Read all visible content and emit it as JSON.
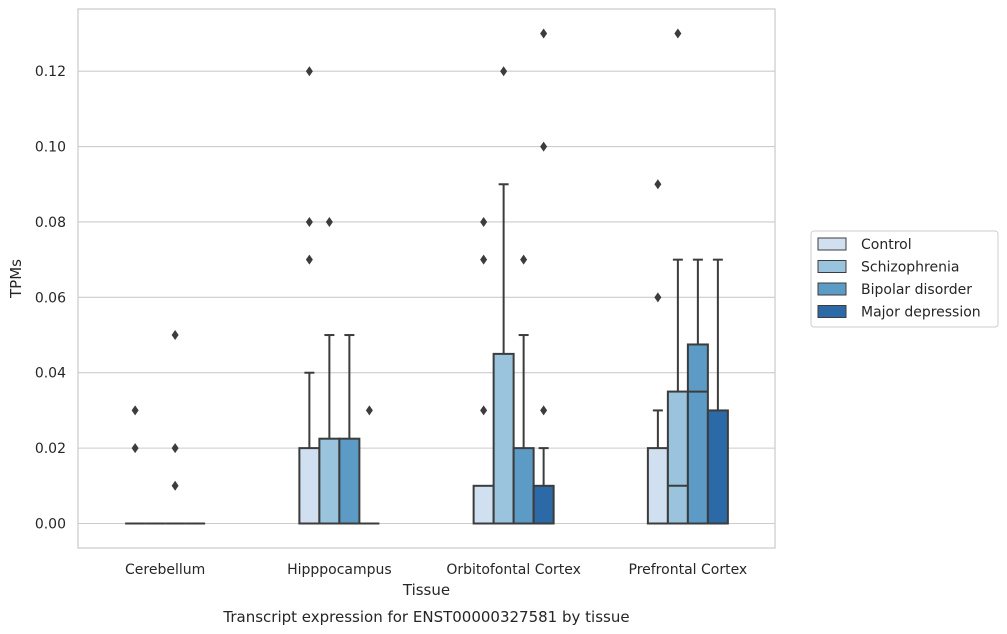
{
  "chart_data": {
    "type": "box",
    "caption": "Transcript expression for ENST00000327581 by tissue",
    "xlabel": "Tissue",
    "ylabel": "TPMs",
    "ylim": [
      -0.0065,
      0.1365
    ],
    "yticks": [
      "0.00",
      "0.02",
      "0.04",
      "0.06",
      "0.08",
      "0.10",
      "0.12"
    ],
    "grid": true,
    "legend_position": "right",
    "categories": [
      "Cerebellum",
      "Hipppocampus",
      "Orbitofontal Cortex",
      "Prefrontal Cortex"
    ],
    "series": [
      {
        "name": "Control",
        "color": "#d0e0f0",
        "boxes": [
          {
            "q1": 0.0,
            "median": 0.0,
            "q3": 0.0,
            "whisker_low": 0.0,
            "whisker_high": 0.0,
            "outliers": [
              0.03,
              0.02
            ]
          },
          {
            "q1": 0.0,
            "median": 0.0,
            "q3": 0.02,
            "whisker_low": 0.0,
            "whisker_high": 0.04,
            "outliers": [
              0.12,
              0.08,
              0.07
            ]
          },
          {
            "q1": 0.0,
            "median": 0.0,
            "q3": 0.01,
            "whisker_low": 0.0,
            "whisker_high": 0.01,
            "outliers": [
              0.08,
              0.07,
              0.03
            ]
          },
          {
            "q1": 0.0,
            "median": 0.0,
            "q3": 0.02,
            "whisker_low": 0.0,
            "whisker_high": 0.03,
            "outliers": [
              0.09,
              0.06
            ]
          }
        ]
      },
      {
        "name": "Schizophrenia",
        "color": "#9ac4dd",
        "boxes": [
          {
            "q1": 0.0,
            "median": 0.0,
            "q3": 0.0,
            "whisker_low": 0.0,
            "whisker_high": 0.0,
            "outliers": []
          },
          {
            "q1": 0.0,
            "median": 0.0,
            "q3": 0.0225,
            "whisker_low": 0.0,
            "whisker_high": 0.05,
            "outliers": [
              0.08
            ]
          },
          {
            "q1": 0.0,
            "median": 0.0,
            "q3": 0.045,
            "whisker_low": 0.0,
            "whisker_high": 0.09,
            "outliers": [
              0.12
            ]
          },
          {
            "q1": 0.0,
            "median": 0.01,
            "q3": 0.035,
            "whisker_low": 0.0,
            "whisker_high": 0.07,
            "outliers": [
              0.13
            ]
          }
        ]
      },
      {
        "name": "Bipolar disorder",
        "color": "#5b9bc6",
        "boxes": [
          {
            "q1": 0.0,
            "median": 0.0,
            "q3": 0.0,
            "whisker_low": 0.0,
            "whisker_high": 0.0,
            "outliers": [
              0.05,
              0.02,
              0.01
            ]
          },
          {
            "q1": 0.0,
            "median": 0.0,
            "q3": 0.0225,
            "whisker_low": 0.0,
            "whisker_high": 0.05,
            "outliers": []
          },
          {
            "q1": 0.0,
            "median": 0.0,
            "q3": 0.02,
            "whisker_low": 0.0,
            "whisker_high": 0.05,
            "outliers": [
              0.07
            ]
          },
          {
            "q1": 0.0,
            "median": 0.035,
            "q3": 0.0475,
            "whisker_low": 0.0,
            "whisker_high": 0.07,
            "outliers": []
          }
        ]
      },
      {
        "name": "Major depression",
        "color": "#2b6aa6",
        "boxes": [
          {
            "q1": 0.0,
            "median": 0.0,
            "q3": 0.0,
            "whisker_low": 0.0,
            "whisker_high": 0.0,
            "outliers": []
          },
          {
            "q1": 0.0,
            "median": 0.0,
            "q3": 0.0,
            "whisker_low": 0.0,
            "whisker_high": 0.0,
            "outliers": [
              0.03
            ]
          },
          {
            "q1": 0.0,
            "median": 0.0,
            "q3": 0.01,
            "whisker_low": 0.0,
            "whisker_high": 0.02,
            "outliers": [
              0.13,
              0.1,
              0.03
            ]
          },
          {
            "q1": 0.0,
            "median": 0.0,
            "q3": 0.03,
            "whisker_low": 0.0,
            "whisker_high": 0.07,
            "outliers": []
          }
        ]
      }
    ]
  }
}
